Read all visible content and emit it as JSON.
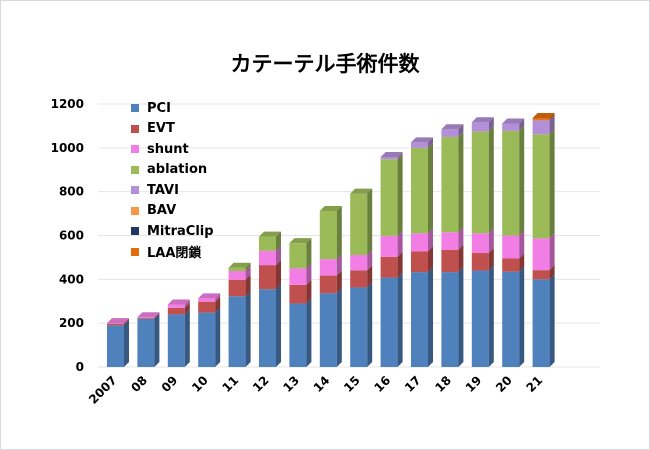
{
  "chart_data": {
    "type": "bar",
    "stacked": true,
    "three_d": true,
    "title": "カテーテル手術件数",
    "categories": [
      "2007",
      "08",
      "09",
      "10",
      "11",
      "12",
      "13",
      "14",
      "15",
      "16",
      "17",
      "18",
      "19",
      "20",
      "21"
    ],
    "ylim": [
      0,
      1200
    ],
    "yticks": [
      0,
      200,
      400,
      600,
      800,
      1000,
      1200
    ],
    "grid": true,
    "legend_position": "top-left-inside",
    "series": [
      {
        "name": "PCI",
        "color": "#4f81bd",
        "values": [
          190,
          220,
          240,
          248,
          323,
          355,
          290,
          337,
          363,
          408,
          433,
          433,
          440,
          435,
          400
        ]
      },
      {
        "name": "EVT",
        "color": "#c0504d",
        "values": [
          8,
          5,
          30,
          50,
          75,
          110,
          85,
          80,
          78,
          95,
          95,
          102,
          80,
          60,
          42
        ]
      },
      {
        "name": "shunt",
        "color": "#f27ee5",
        "values": [
          2,
          2,
          15,
          15,
          40,
          65,
          75,
          75,
          70,
          95,
          82,
          80,
          90,
          105,
          145
        ]
      },
      {
        "name": "ablation",
        "color": "#9bbb59",
        "values": [
          0,
          0,
          0,
          0,
          15,
          65,
          115,
          220,
          280,
          350,
          390,
          435,
          465,
          478,
          475
        ]
      },
      {
        "name": "TAVI",
        "color": "#b38fd7",
        "values": [
          0,
          0,
          0,
          0,
          0,
          0,
          0,
          0,
          0,
          10,
          25,
          35,
          42,
          33,
          62
        ]
      },
      {
        "name": "BAV",
        "color": "#f79646",
        "values": [
          0,
          0,
          0,
          0,
          0,
          0,
          0,
          0,
          0,
          0,
          0,
          0,
          0,
          0,
          2
        ]
      },
      {
        "name": "MitraClip",
        "color": "#1f3864",
        "values": [
          0,
          0,
          0,
          0,
          0,
          0,
          0,
          0,
          0,
          0,
          0,
          0,
          0,
          0,
          2
        ]
      },
      {
        "name": "LAA閉鎖",
        "color": "#e46c0a",
        "values": [
          0,
          0,
          0,
          0,
          0,
          0,
          0,
          0,
          0,
          0,
          0,
          0,
          0,
          0,
          8
        ]
      }
    ]
  }
}
